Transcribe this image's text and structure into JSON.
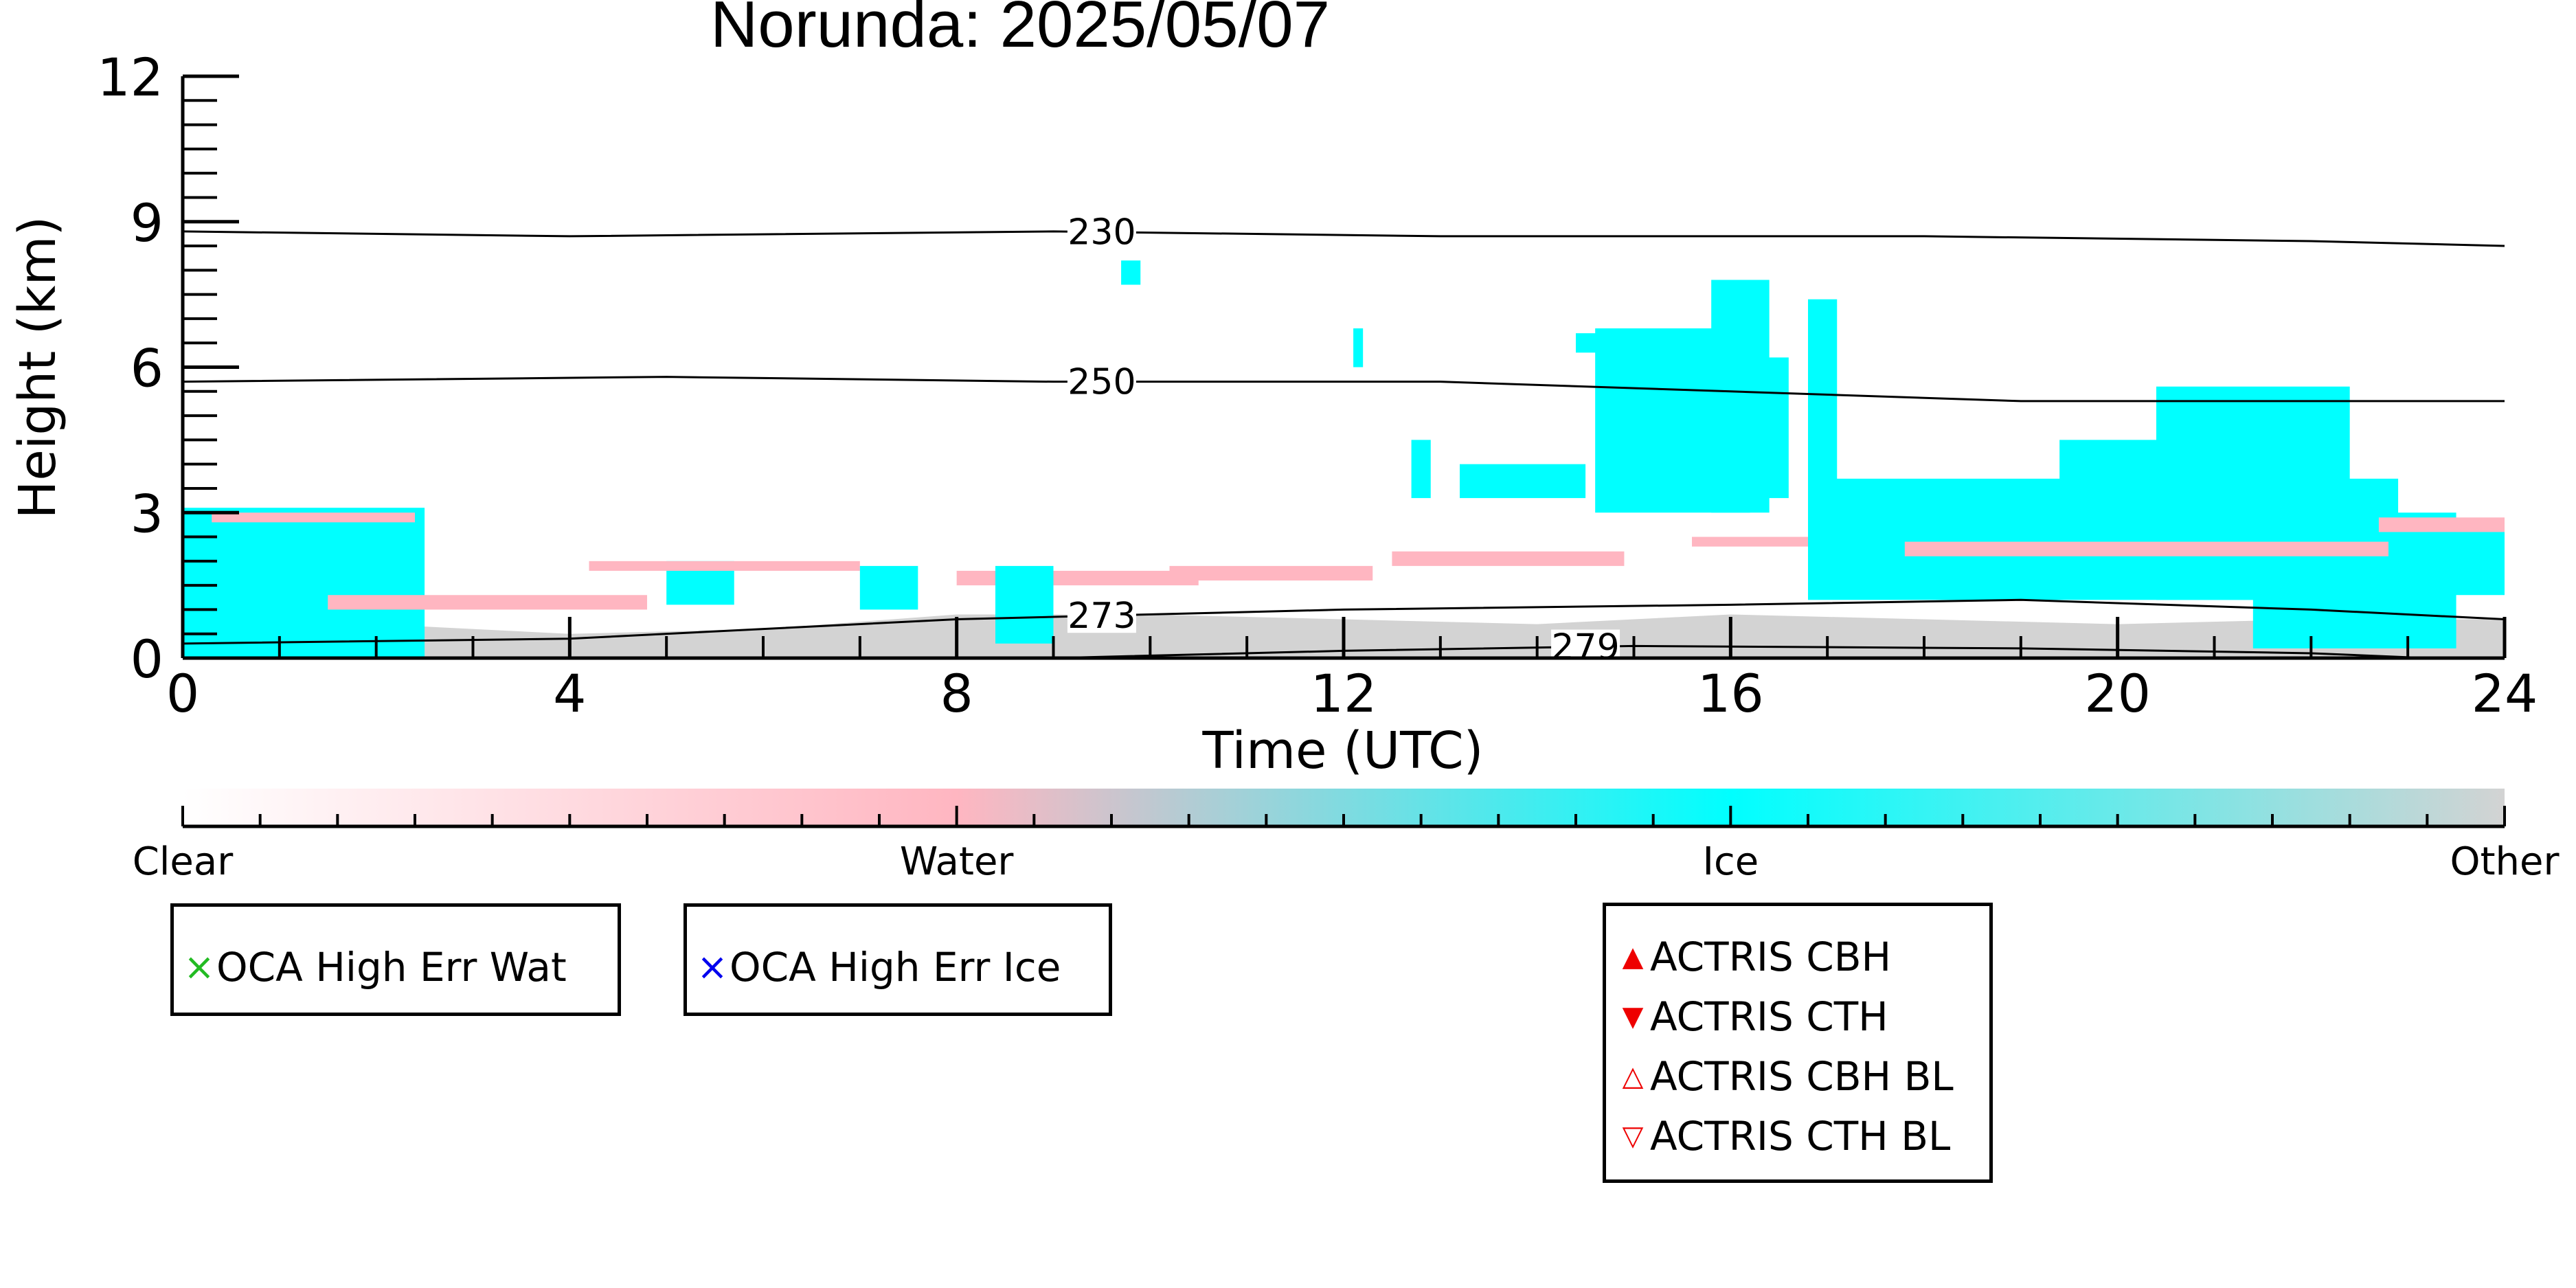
{
  "chart_data": {
    "type": "heatmap",
    "title": "Norunda: 2025/05/07",
    "xlabel": "Time (UTC)",
    "ylabel": "Height (km)",
    "xlim": [
      0,
      24
    ],
    "ylim": [
      0,
      12
    ],
    "x_ticks": [
      "0",
      "4",
      "8",
      "12",
      "16",
      "20",
      "24"
    ],
    "y_ticks": [
      "0",
      "3",
      "6",
      "9",
      "12"
    ],
    "categories": [
      "Clear",
      "Water",
      "Ice",
      "Other"
    ],
    "colors": {
      "Clear": "#ffffff",
      "Water": "#ffb6c1",
      "Ice": "#00ffff",
      "Other": "#d3d3d3"
    },
    "cloud_regions": [
      {
        "class": "Ice",
        "x": [
          0.0,
          2.5
        ],
        "y": [
          0.0,
          3.1
        ]
      },
      {
        "class": "Water",
        "x": [
          0.3,
          2.4
        ],
        "y": [
          2.8,
          3.0
        ]
      },
      {
        "class": "Water",
        "x": [
          1.5,
          4.8
        ],
        "y": [
          1.0,
          1.3
        ]
      },
      {
        "class": "Ice",
        "x": [
          5.0,
          5.7
        ],
        "y": [
          1.1,
          2.0
        ]
      },
      {
        "class": "Water",
        "x": [
          4.2,
          7.0
        ],
        "y": [
          1.8,
          2.0
        ]
      },
      {
        "class": "Ice",
        "x": [
          7.0,
          7.6
        ],
        "y": [
          1.0,
          1.9
        ]
      },
      {
        "class": "Water",
        "x": [
          8.0,
          10.5
        ],
        "y": [
          1.5,
          1.8
        ]
      },
      {
        "class": "Ice",
        "x": [
          8.4,
          9.0
        ],
        "y": [
          0.3,
          1.9
        ]
      },
      {
        "class": "Water",
        "x": [
          10.2,
          12.3
        ],
        "y": [
          1.6,
          1.9
        ]
      },
      {
        "class": "Ice",
        "x": [
          9.7,
          9.9
        ],
        "y": [
          7.7,
          8.2
        ]
      },
      {
        "class": "Ice",
        "x": [
          12.1,
          12.2
        ],
        "y": [
          6.0,
          6.8
        ]
      },
      {
        "class": "Ice",
        "x": [
          12.7,
          12.9
        ],
        "y": [
          3.3,
          4.5
        ]
      },
      {
        "class": "Water",
        "x": [
          12.5,
          14.9
        ],
        "y": [
          1.9,
          2.2
        ]
      },
      {
        "class": "Ice",
        "x": [
          13.2,
          14.5
        ],
        "y": [
          3.3,
          4.0
        ]
      },
      {
        "class": "Ice",
        "x": [
          14.4,
          15.5
        ],
        "y": [
          6.3,
          6.7
        ]
      },
      {
        "class": "Ice",
        "x": [
          14.6,
          16.2
        ],
        "y": [
          3.0,
          6.8
        ]
      },
      {
        "class": "Ice",
        "x": [
          15.8,
          16.4
        ],
        "y": [
          3.0,
          7.8
        ]
      },
      {
        "class": "Ice",
        "x": [
          16.8,
          17.1
        ],
        "y": [
          3.3,
          7.4
        ]
      },
      {
        "class": "Ice",
        "x": [
          16.2,
          16.6
        ],
        "y": [
          3.3,
          6.2
        ]
      },
      {
        "class": "Water",
        "x": [
          15.6,
          17.0
        ],
        "y": [
          2.3,
          2.5
        ]
      },
      {
        "class": "Ice",
        "x": [
          16.8,
          22.9
        ],
        "y": [
          1.2,
          3.7
        ]
      },
      {
        "class": "Ice",
        "x": [
          20.4,
          22.4
        ],
        "y": [
          1.2,
          5.6
        ]
      },
      {
        "class": "Ice",
        "x": [
          19.4,
          20.6
        ],
        "y": [
          1.3,
          4.5
        ]
      },
      {
        "class": "Ice",
        "x": [
          21.4,
          23.5
        ],
        "y": [
          0.2,
          3.0
        ]
      },
      {
        "class": "Water",
        "x": [
          17.8,
          22.8
        ],
        "y": [
          2.1,
          2.4
        ]
      },
      {
        "class": "Water",
        "x": [
          22.7,
          24.0
        ],
        "y": [
          2.6,
          2.9
        ]
      },
      {
        "class": "Ice",
        "x": [
          23.2,
          24.0
        ],
        "y": [
          1.3,
          2.6
        ]
      }
    ],
    "other_layer": [
      {
        "x": 0,
        "top": 0.4
      },
      {
        "x": 2,
        "top": 0.7
      },
      {
        "x": 4,
        "top": 0.5
      },
      {
        "x": 6,
        "top": 0.6
      },
      {
        "x": 8,
        "top": 0.9
      },
      {
        "x": 10,
        "top": 0.9
      },
      {
        "x": 12,
        "top": 0.8
      },
      {
        "x": 14,
        "top": 0.7
      },
      {
        "x": 16,
        "top": 0.9
      },
      {
        "x": 18,
        "top": 0.8
      },
      {
        "x": 20,
        "top": 0.7
      },
      {
        "x": 22,
        "top": 0.8
      },
      {
        "x": 24,
        "top": 0.8
      }
    ],
    "isotherms": [
      {
        "label": "230",
        "label_x": 9.5,
        "points": [
          [
            0,
            8.8
          ],
          [
            4,
            8.7
          ],
          [
            9,
            8.8
          ],
          [
            13,
            8.7
          ],
          [
            18,
            8.7
          ],
          [
            22,
            8.6
          ],
          [
            24,
            8.5
          ]
        ]
      },
      {
        "label": "250",
        "label_x": 9.5,
        "points": [
          [
            0,
            5.7
          ],
          [
            5,
            5.8
          ],
          [
            9,
            5.7
          ],
          [
            13,
            5.7
          ],
          [
            16,
            5.5
          ],
          [
            19,
            5.3
          ],
          [
            24,
            5.3
          ]
        ]
      },
      {
        "label": "273",
        "label_x": 9.5,
        "points": [
          [
            0,
            0.3
          ],
          [
            4,
            0.4
          ],
          [
            8,
            0.8
          ],
          [
            12,
            1.0
          ],
          [
            16,
            1.1
          ],
          [
            19,
            1.2
          ],
          [
            22,
            1.0
          ],
          [
            24,
            0.8
          ]
        ]
      },
      {
        "label": "279",
        "label_x": 14.5,
        "points": [
          [
            9,
            0.0
          ],
          [
            12,
            0.15
          ],
          [
            15,
            0.25
          ],
          [
            19,
            0.2
          ],
          [
            22,
            0.1
          ],
          [
            23.2,
            0.0
          ]
        ]
      }
    ],
    "colorbar": {
      "labels": [
        "Clear",
        "Water",
        "Ice",
        "Other"
      ],
      "stops": [
        "#ffffff",
        "#ffb6c1",
        "#00ffff",
        "#d3d3d3"
      ]
    }
  },
  "legends": {
    "oca_water": {
      "label": "OCA High Err Wat",
      "marker": "×",
      "color": "#22bb22"
    },
    "oca_ice": {
      "label": "OCA High Err Ice",
      "marker": "×",
      "color": "#0000ee"
    },
    "actris": [
      {
        "label": "ACTRIS CBH",
        "marker": "▲",
        "color": "#ee0000"
      },
      {
        "label": "ACTRIS CTH",
        "marker": "▼",
        "color": "#ee0000"
      },
      {
        "label": "ACTRIS CBH BL",
        "marker": "△",
        "color": "#ee0000"
      },
      {
        "label": "ACTRIS CTH BL",
        "marker": "▽",
        "color": "#ee0000"
      }
    ]
  }
}
